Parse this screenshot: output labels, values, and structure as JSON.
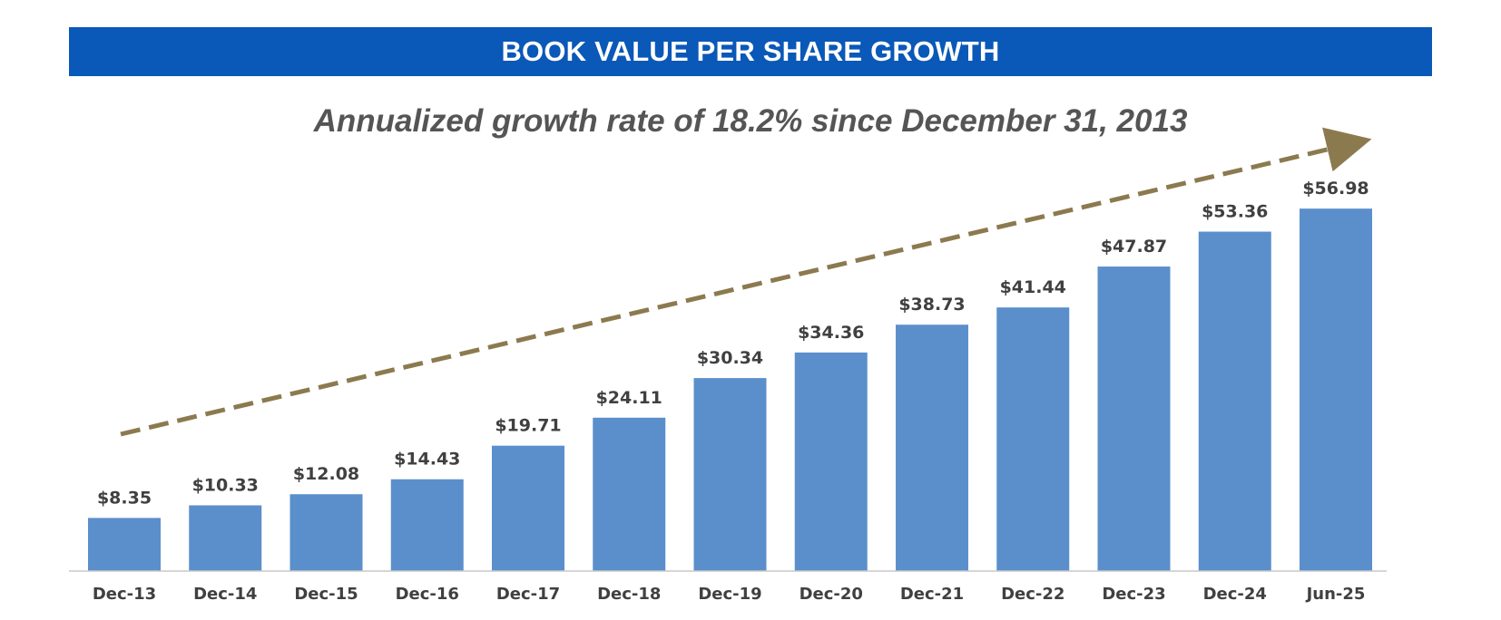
{
  "banner": {
    "title": "BOOK VALUE PER SHARE GROWTH"
  },
  "subtitle": "Annualized growth rate of 18.2% since December 31, 2013",
  "colors": {
    "banner": "#0a58b8",
    "bar": "#5b8fcc",
    "trend_arrow": "#8c7a4f",
    "axis": "#c8c8c8",
    "text": "#404040"
  },
  "chart_data": {
    "type": "bar",
    "title": "BOOK VALUE PER SHARE GROWTH",
    "subtitle": "Annualized growth rate of 18.2% since December 31, 2013",
    "categories": [
      "Dec-13",
      "Dec-14",
      "Dec-15",
      "Dec-16",
      "Dec-17",
      "Dec-18",
      "Dec-19",
      "Dec-20",
      "Dec-21",
      "Dec-22",
      "Dec-23",
      "Dec-24",
      "Jun-25"
    ],
    "values": [
      8.35,
      10.33,
      12.08,
      14.43,
      19.71,
      24.11,
      30.34,
      34.36,
      38.73,
      41.44,
      47.87,
      53.36,
      56.98
    ],
    "data_labels": [
      "$8.35",
      "$10.33",
      "$12.08",
      "$14.43",
      "$19.71",
      "$24.11",
      "$30.34",
      "$34.36",
      "$38.73",
      "$41.44",
      "$47.87",
      "$53.36",
      "$56.98"
    ],
    "xlabel": "",
    "ylabel": "",
    "ylim": [
      0,
      57
    ],
    "grid": false,
    "legend": "none",
    "annotation": "dashed trend arrow rising left to right above the bars"
  }
}
